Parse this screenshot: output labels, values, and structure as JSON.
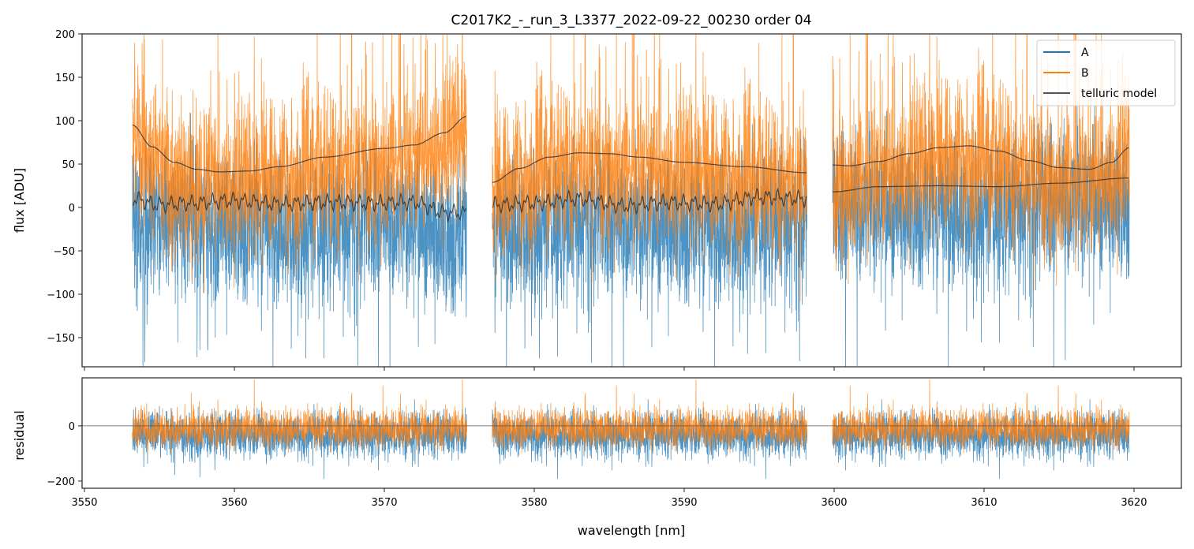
{
  "chart_data": [
    {
      "type": "line",
      "title": "C2017K2_-_run_3_L3377_2022-09-22_00230  order 04",
      "xlabel": "",
      "ylabel": "flux [ADU]",
      "xlim": [
        3549.84,
        3623.16
      ],
      "ylim": [
        -183.6,
        200
      ],
      "xticks": [
        3550,
        3560,
        3570,
        3580,
        3590,
        3600,
        3610,
        3620
      ],
      "yticks": [
        -150,
        -100,
        -50,
        0,
        50,
        100,
        150,
        200
      ],
      "ytick_labels": [
        "−150",
        "−100",
        "−50",
        "0",
        "50",
        "100",
        "150",
        "200"
      ],
      "legend": {
        "position": "top-right",
        "entries": [
          "A",
          "B",
          "telluric model"
        ]
      },
      "segments": [
        [
          3553.2,
          3575.5
        ],
        [
          3577.2,
          3598.2
        ],
        [
          3599.9,
          3619.7
        ]
      ],
      "series": [
        {
          "name": "A",
          "color": "#1f77b4",
          "description_level": "noisy around lower telluric model, spread roughly -180 to +200"
        },
        {
          "name": "B",
          "color": "#ff7f0e",
          "description_level": "noisy around upper telluric model, spread roughly -150 to +200"
        },
        {
          "name": "telluric model",
          "color": "#333333",
          "upper": [
            [
              [
                3553.2,
                95
              ],
              [
                3554.5,
                70
              ],
              [
                3556,
                52
              ],
              [
                3557.5,
                44
              ],
              [
                3559,
                41
              ],
              [
                3561,
                42
              ],
              [
                3563,
                47
              ],
              [
                3566,
                58
              ],
              [
                3570,
                68
              ],
              [
                3572,
                72
              ],
              [
                3574,
                86
              ],
              [
                3575.5,
                105
              ]
            ],
            [
              [
                3577.2,
                29
              ],
              [
                3579,
                45
              ],
              [
                3581,
                58
              ],
              [
                3583,
                63
              ],
              [
                3585,
                62
              ],
              [
                3587,
                58
              ],
              [
                3590,
                52
              ],
              [
                3594,
                47
              ],
              [
                3598.2,
                40
              ]
            ],
            [
              [
                3599.9,
                49
              ],
              [
                3601,
                48
              ],
              [
                3603,
                53
              ],
              [
                3605,
                62
              ],
              [
                3607,
                69
              ],
              [
                3609,
                71
              ],
              [
                3611,
                65
              ],
              [
                3613,
                54
              ],
              [
                3615,
                46
              ],
              [
                3617,
                44
              ],
              [
                3618.5,
                52
              ],
              [
                3619.7,
                69
              ]
            ]
          ],
          "lower": [
            [
              [
                3553.2,
                10
              ],
              [
                3555,
                3
              ],
              [
                3557,
                5
              ],
              [
                3560,
                8
              ],
              [
                3563,
                4
              ],
              [
                3566,
                6
              ],
              [
                3569,
                5
              ],
              [
                3572,
                6
              ],
              [
                3574,
                -6
              ],
              [
                3575.5,
                -6
              ]
            ],
            [
              [
                3577.2,
                3
              ],
              [
                3580,
                5
              ],
              [
                3583,
                10
              ],
              [
                3586,
                2
              ],
              [
                3589,
                6
              ],
              [
                3592,
                4
              ],
              [
                3595,
                12
              ],
              [
                3598.2,
                10
              ]
            ],
            [
              [
                3599.9,
                18
              ],
              [
                3603,
                24
              ],
              [
                3607,
                25
              ],
              [
                3611,
                24
              ],
              [
                3615,
                28
              ],
              [
                3619.7,
                34
              ]
            ]
          ]
        }
      ]
    },
    {
      "type": "line",
      "xlabel": "wavelength [nm]",
      "ylabel": "residual",
      "xlim": [
        3549.84,
        3623.16
      ],
      "ylim": [
        -226,
        174
      ],
      "xticks": [
        3550,
        3560,
        3570,
        3580,
        3590,
        3600,
        3610,
        3620
      ],
      "xtick_labels": [
        "3550",
        "3560",
        "3570",
        "3580",
        "3590",
        "3600",
        "3610",
        "3620"
      ],
      "yticks": [
        -200,
        0
      ],
      "ytick_labels": [
        "−200",
        "0"
      ],
      "series": [
        {
          "name": "A",
          "color": "#1f77b4",
          "center": -30,
          "spread": 60
        },
        {
          "name": "B",
          "color": "#ff7f0e",
          "center": -10,
          "spread": 50
        }
      ],
      "reference_line": 0
    }
  ]
}
